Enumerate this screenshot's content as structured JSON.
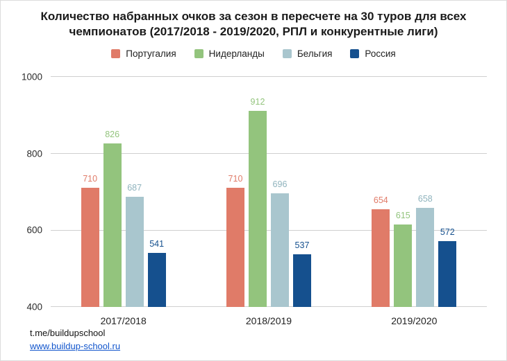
{
  "title": "Количество набранных очков за сезон в пересчете на 30 туров для всех чемпионатов (2017/2018 - 2019/2020, РПЛ и конкурентные лиги)",
  "footer": {
    "telegram": "t.me/buildupschool",
    "website": "www.buildup-school.ru"
  },
  "colors": {
    "grid": "#cfcfcf",
    "title_text": "#1a1a1a",
    "link": "#1155cc"
  },
  "chart_data": {
    "type": "bar",
    "title": "Количество набранных очков за сезон в пересчете на 30 туров для всех чемпионатов (2017/2018 - 2019/2020, РПЛ и конкурентные лиги)",
    "categories": [
      "2017/2018",
      "2018/2019",
      "2019/2020"
    ],
    "series": [
      {
        "name": "Португалия",
        "color": "#e07b68",
        "values": [
          710,
          710,
          654
        ]
      },
      {
        "name": "Нидерланды",
        "color": "#93c47d",
        "values": [
          826,
          912,
          615
        ]
      },
      {
        "name": "Бельгия",
        "color": "#a9c6ce",
        "values": [
          687,
          696,
          658
        ]
      },
      {
        "name": "Россия",
        "color": "#15508e",
        "values": [
          541,
          537,
          572
        ]
      }
    ],
    "xlabel": "",
    "ylabel": "",
    "ylim": [
      400,
      1000
    ],
    "yticks": [
      400,
      600,
      800,
      1000
    ],
    "grid": true,
    "legend_position": "top",
    "value_labels": true
  }
}
